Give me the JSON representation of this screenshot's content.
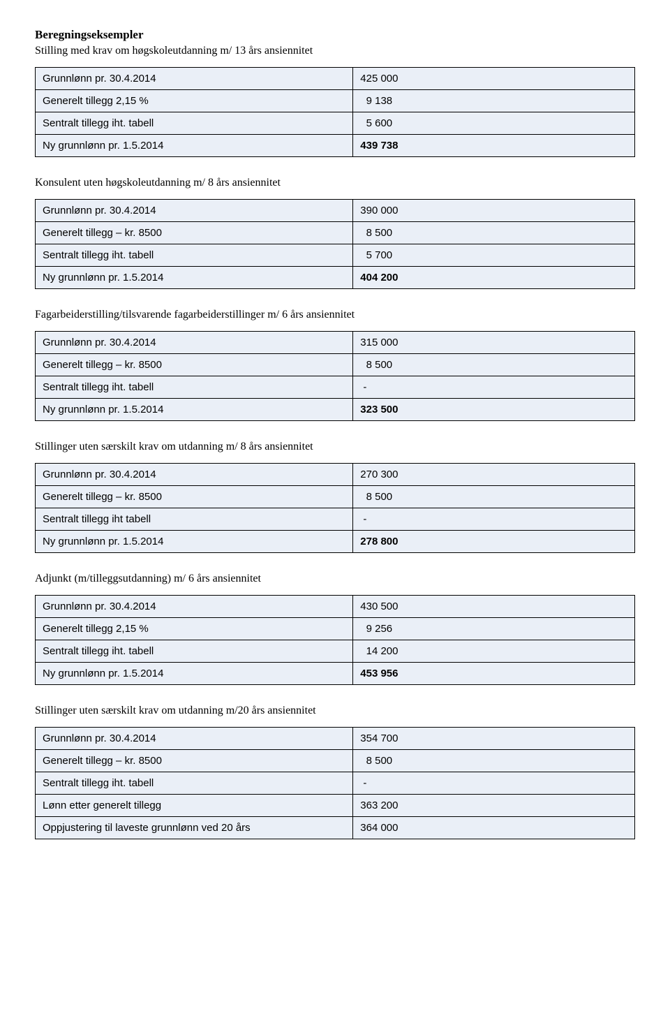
{
  "title": "Beregningseksempler",
  "sections": [
    {
      "subtitle": "Stilling med krav om høgskoleutdanning m/ 13 års ansiennitet",
      "rows": [
        {
          "label": "Grunnlønn pr. 30.4.2014",
          "value": "425 000",
          "bold": false
        },
        {
          "label": "Generelt tillegg 2,15 %",
          "value": "  9 138",
          "bold": false
        },
        {
          "label": "Sentralt tillegg iht. tabell",
          "value": "  5 600",
          "bold": false
        },
        {
          "label": "Ny grunnlønn pr. 1.5.2014",
          "value": "439 738",
          "bold": true
        }
      ]
    },
    {
      "subtitle": "Konsulent uten høgskoleutdanning m/ 8 års ansiennitet",
      "rows": [
        {
          "label": "Grunnlønn pr. 30.4.2014",
          "value": "390 000",
          "bold": false
        },
        {
          "label": "Generelt tillegg – kr. 8500",
          "value": "  8 500",
          "bold": false
        },
        {
          "label": "Sentralt tillegg iht. tabell",
          "value": "  5 700",
          "bold": false
        },
        {
          "label": "Ny grunnlønn pr. 1.5.2014",
          "value": "404 200",
          "bold": true
        }
      ]
    },
    {
      "subtitle": "Fagarbeiderstilling/tilsvarende fagarbeiderstillinger m/ 6 års ansiennitet",
      "rows": [
        {
          "label": "Grunnlønn pr. 30.4.2014",
          "value": "315 000",
          "bold": false
        },
        {
          "label": "Generelt tillegg – kr. 8500",
          "value": "  8 500",
          "bold": false
        },
        {
          "label": "Sentralt tillegg iht. tabell",
          "value": " -",
          "bold": false
        },
        {
          "label": "Ny grunnlønn pr. 1.5.2014",
          "value": "323 500",
          "bold": true
        }
      ]
    },
    {
      "subtitle": "Stillinger uten særskilt krav om utdanning m/ 8 års ansiennitet",
      "rows": [
        {
          "label": "Grunnlønn pr. 30.4.2014",
          "value": "270 300",
          "bold": false
        },
        {
          "label": "Generelt tillegg – kr. 8500",
          "value": "  8 500",
          "bold": false
        },
        {
          "label": "Sentralt tillegg iht tabell",
          "value": " -",
          "bold": false
        },
        {
          "label": "Ny grunnlønn pr. 1.5.2014",
          "value": "278 800",
          "bold": true
        }
      ]
    },
    {
      "subtitle": "Adjunkt (m/tilleggsutdanning) m/ 6 års ansiennitet",
      "rows": [
        {
          "label": "Grunnlønn pr. 30.4.2014",
          "value": "430 500",
          "bold": false
        },
        {
          "label": "Generelt tillegg 2,15 %",
          "value": "  9 256",
          "bold": false
        },
        {
          "label": "Sentralt tillegg iht. tabell",
          "value": "  14 200",
          "bold": false
        },
        {
          "label": "Ny grunnlønn pr. 1.5.2014",
          "value": "453 956",
          "bold": true
        }
      ]
    },
    {
      "subtitle": "Stillinger uten særskilt krav om utdanning m/20 års ansiennitet",
      "rows": [
        {
          "label": "Grunnlønn pr. 30.4.2014",
          "value": "354 700",
          "bold": false
        },
        {
          "label": "Generelt tillegg – kr. 8500",
          "value": "  8 500",
          "bold": false
        },
        {
          "label": "Sentralt tillegg iht. tabell",
          "value": " -",
          "bold": false
        },
        {
          "label": "Lønn etter generelt tillegg",
          "value": "363 200",
          "bold": false
        },
        {
          "label": "Oppjustering til laveste grunnlønn ved 20 års",
          "value": "364 000",
          "bold": false
        }
      ]
    }
  ]
}
